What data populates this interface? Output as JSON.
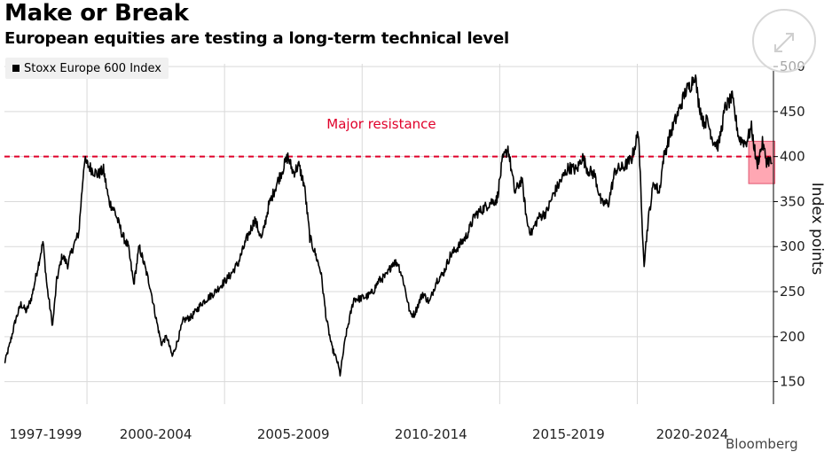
{
  "header": {
    "title": "Make or Break",
    "subtitle": "European equities are testing a long-term technical level"
  },
  "legend": {
    "label": "Stoxx Europe 600 Index"
  },
  "watermark": "Bloomberg",
  "colors": {
    "line": "#000000",
    "resistance": "#e0002a",
    "highlight": "#ff8a9a",
    "grid": "#d9d9d9"
  },
  "chart_data": {
    "type": "line",
    "title": "Make or Break",
    "subtitle": "European equities are testing a long-term technical level",
    "ylabel": "Index points",
    "xlabel": "",
    "ylim": [
      125,
      505
    ],
    "xlim": [
      1997.0,
      2024.95
    ],
    "yticks": [
      150,
      200,
      250,
      300,
      350,
      400,
      450,
      500
    ],
    "xtick_labels": [
      "1997-1999",
      "2000-2004",
      "2005-2009",
      "2010-2014",
      "2015-2019",
      "2020-2024"
    ],
    "xtick_positions": [
      1998.5,
      2002.5,
      2007.5,
      2012.5,
      2017.5,
      2022.0
    ],
    "grid_x": [
      2000,
      2005,
      2010,
      2015,
      2020
    ],
    "reference_line": {
      "value": 400,
      "label": "Major resistance",
      "style": "dashed"
    },
    "highlight_region": {
      "x": [
        2024.05,
        2025.0
      ],
      "y": [
        370,
        417
      ]
    },
    "series": [
      {
        "name": "Stoxx Europe 600 Index",
        "x": [
          1997.0,
          1997.2,
          1997.4,
          1997.6,
          1997.8,
          1998.0,
          1998.2,
          1998.4,
          1998.55,
          1998.75,
          1998.9,
          1999.1,
          1999.3,
          1999.5,
          1999.7,
          1999.9,
          2000.2,
          2000.4,
          2000.6,
          2000.8,
          2001.0,
          2001.3,
          2001.5,
          2001.7,
          2001.9,
          2002.1,
          2002.3,
          2002.5,
          2002.7,
          2002.9,
          2003.1,
          2003.3,
          2003.5,
          2003.8,
          2004.2,
          2004.6,
          2004.9,
          2005.2,
          2005.5,
          2005.8,
          2006.1,
          2006.35,
          2006.6,
          2006.9,
          2007.1,
          2007.3,
          2007.5,
          2007.7,
          2007.9,
          2008.1,
          2008.3,
          2008.5,
          2008.7,
          2008.9,
          2009.1,
          2009.2,
          2009.4,
          2009.7,
          2009.9,
          2010.2,
          2010.4,
          2010.6,
          2010.9,
          2011.1,
          2011.3,
          2011.5,
          2011.75,
          2011.9,
          2012.2,
          2012.45,
          2012.7,
          2012.95,
          2013.2,
          2013.5,
          2013.8,
          2014.1,
          2014.4,
          2014.7,
          2014.9,
          2015.1,
          2015.3,
          2015.55,
          2015.8,
          2016.0,
          2016.15,
          2016.4,
          2016.7,
          2016.95,
          2017.2,
          2017.5,
          2017.8,
          2018.0,
          2018.2,
          2018.45,
          2018.7,
          2018.95,
          2019.2,
          2019.5,
          2019.8,
          2020.05,
          2020.15,
          2020.25,
          2020.4,
          2020.6,
          2020.8,
          2020.95,
          2021.2,
          2021.5,
          2021.75,
          2021.95,
          2022.1,
          2022.2,
          2022.4,
          2022.55,
          2022.75,
          2022.95,
          2023.2,
          2023.45,
          2023.7,
          2023.95,
          2024.15,
          2024.35,
          2024.55,
          2024.7,
          2024.8,
          2024.9
        ],
        "values": [
          170,
          192,
          218,
          236,
          228,
          245,
          275,
          305,
          255,
          212,
          262,
          290,
          280,
          300,
          315,
          395,
          385,
          380,
          385,
          350,
          340,
          312,
          300,
          258,
          300,
          278,
          255,
          222,
          192,
          200,
          178,
          196,
          218,
          222,
          238,
          248,
          258,
          268,
          282,
          308,
          330,
          308,
          345,
          370,
          385,
          400,
          382,
          390,
          368,
          310,
          292,
          272,
          220,
          188,
          172,
          158,
          200,
          242,
          242,
          245,
          250,
          262,
          268,
          282,
          282,
          262,
          225,
          225,
          248,
          238,
          262,
          270,
          290,
          300,
          312,
          335,
          342,
          350,
          352,
          395,
          410,
          360,
          375,
          326,
          315,
          332,
          338,
          358,
          372,
          388,
          385,
          400,
          385,
          380,
          348,
          348,
          385,
          388,
          398,
          428,
          342,
          282,
          330,
          372,
          360,
          398,
          425,
          450,
          472,
          480,
          492,
          465,
          438,
          440,
          418,
          412,
          455,
          465,
          420,
          415,
          432,
          390,
          415,
          395,
          396,
          392
        ]
      }
    ]
  }
}
